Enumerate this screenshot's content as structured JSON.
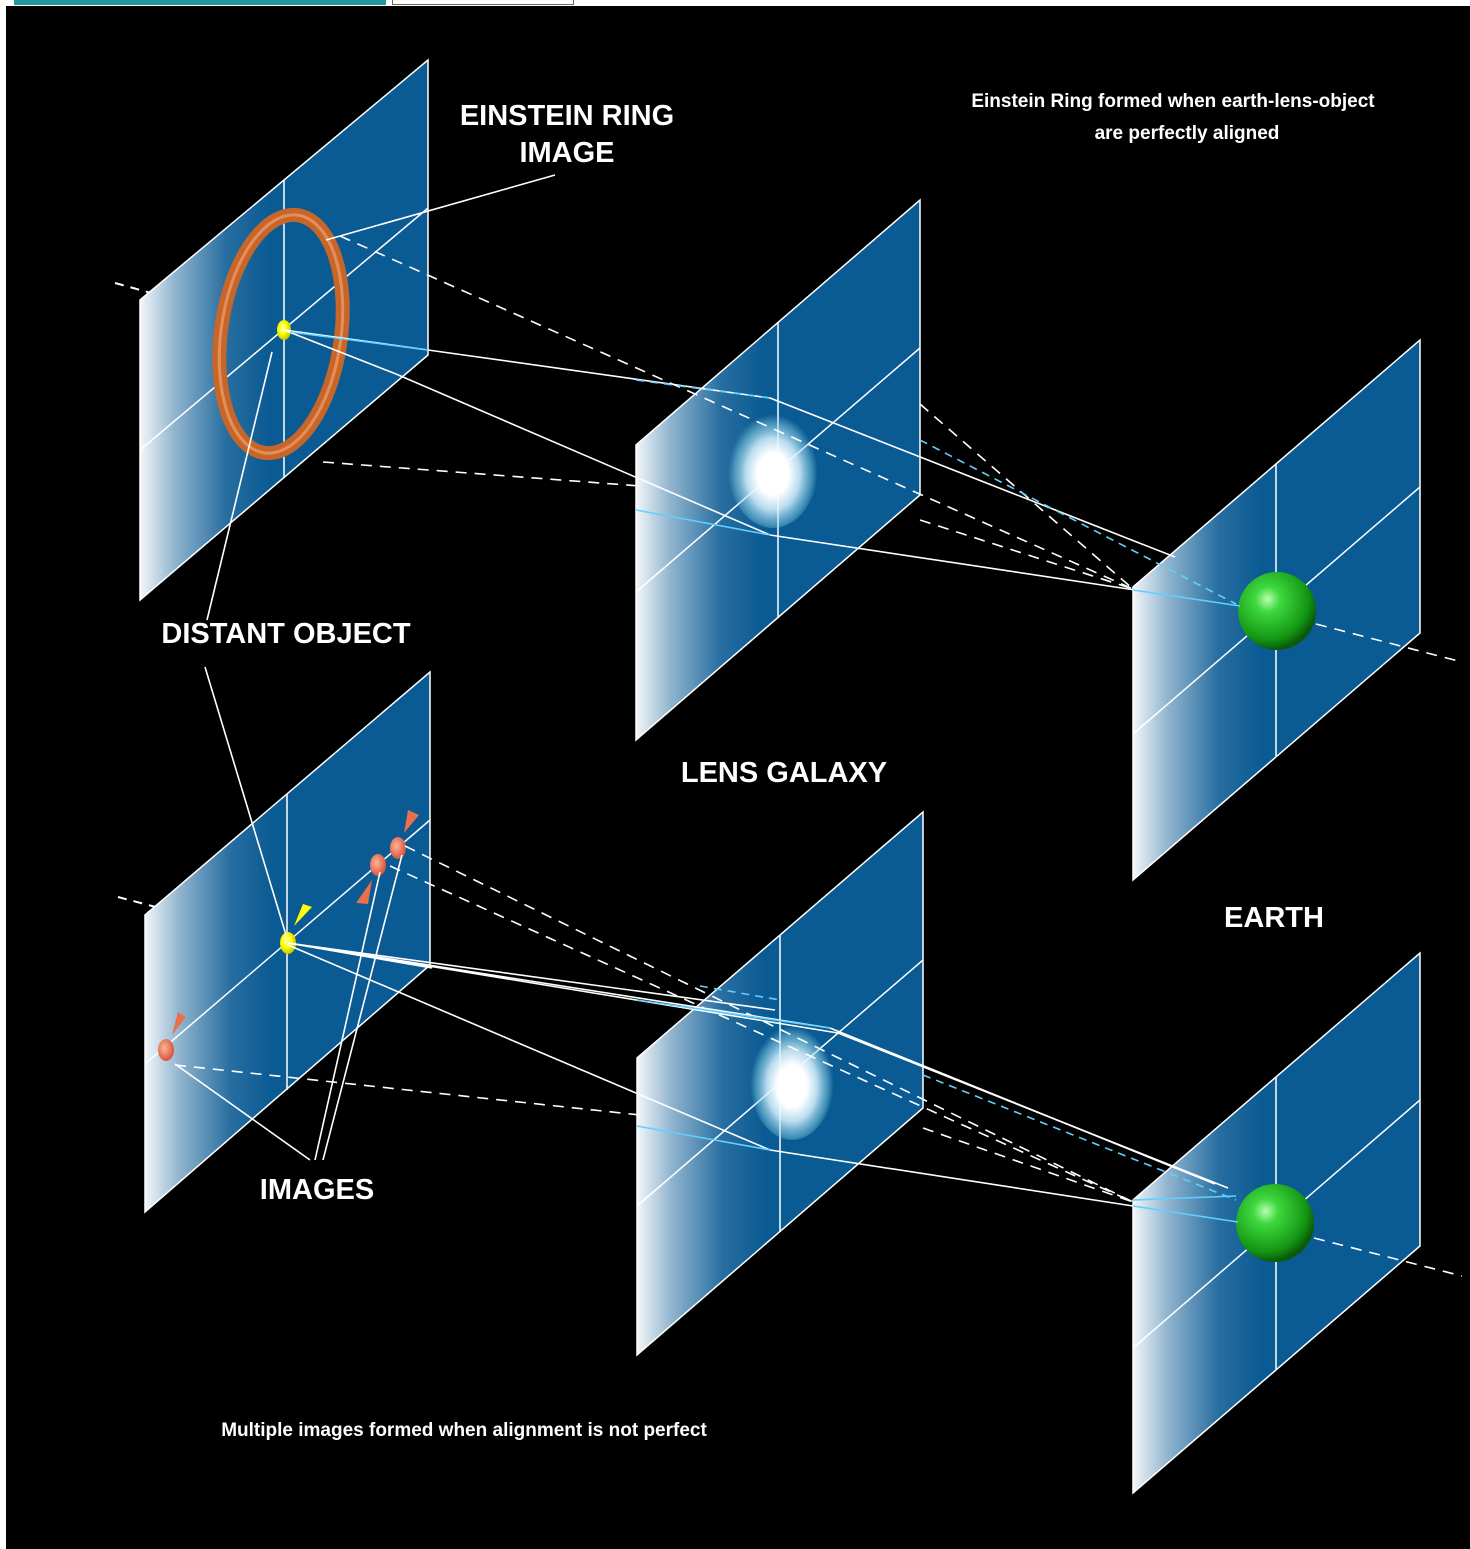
{
  "labels": {
    "einstein_ring_image_line1": "EINSTEIN RING",
    "einstein_ring_image_line2": "IMAGE",
    "caption_top_line1": "Einstein Ring formed when earth-lens-object",
    "caption_top_line2": "are perfectly aligned",
    "distant_object": "DISTANT OBJECT",
    "lens_galaxy": "LENS GALAXY",
    "earth": "EARTH",
    "images": "IMAGES",
    "caption_bottom": "Multiple images formed when alignment is not perfect"
  },
  "colors": {
    "background": "#000000",
    "plane": "#0a5a93",
    "plane_grid": "#ffffff",
    "ring": "#c8662a",
    "source": "#ffff00",
    "image_markers": "#e8704a",
    "earth": "#1fbf1f",
    "sight_lines": "#ffffff",
    "inner_rays": "#5fd0ff"
  }
}
